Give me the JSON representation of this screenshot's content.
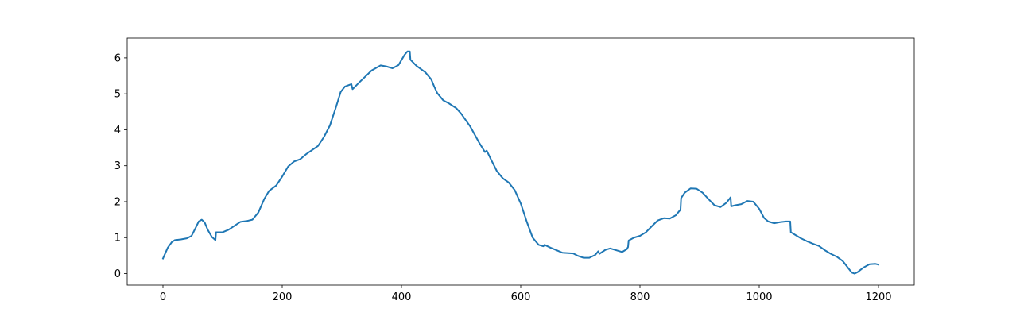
{
  "chart_data": {
    "type": "line",
    "title": "",
    "xlabel": "",
    "ylabel": "",
    "xlim": [
      -60,
      1260
    ],
    "ylim": [
      -0.32,
      6.55
    ],
    "grid": false,
    "x_ticks": [
      0,
      200,
      400,
      600,
      800,
      1000,
      1200
    ],
    "y_ticks": [
      0,
      1,
      2,
      3,
      4,
      5,
      6
    ],
    "x_tick_labels": [
      "0",
      "200",
      "400",
      "600",
      "800",
      "1000",
      "1200"
    ],
    "y_tick_labels": [
      "0",
      "1",
      "2",
      "3",
      "4",
      "5",
      "6"
    ],
    "series": [
      {
        "color": "#1f77b4",
        "points": [
          [
            0,
            0.42
          ],
          [
            8,
            0.72
          ],
          [
            15,
            0.88
          ],
          [
            20,
            0.93
          ],
          [
            30,
            0.95
          ],
          [
            40,
            0.98
          ],
          [
            48,
            1.05
          ],
          [
            55,
            1.28
          ],
          [
            60,
            1.45
          ],
          [
            65,
            1.5
          ],
          [
            70,
            1.42
          ],
          [
            75,
            1.22
          ],
          [
            82,
            1.02
          ],
          [
            88,
            0.93
          ],
          [
            89,
            1.15
          ],
          [
            100,
            1.15
          ],
          [
            110,
            1.22
          ],
          [
            120,
            1.33
          ],
          [
            130,
            1.44
          ],
          [
            140,
            1.46
          ],
          [
            150,
            1.5
          ],
          [
            160,
            1.7
          ],
          [
            170,
            2.08
          ],
          [
            178,
            2.3
          ],
          [
            190,
            2.45
          ],
          [
            200,
            2.7
          ],
          [
            210,
            2.98
          ],
          [
            220,
            3.12
          ],
          [
            230,
            3.18
          ],
          [
            240,
            3.32
          ],
          [
            260,
            3.55
          ],
          [
            270,
            3.8
          ],
          [
            280,
            4.12
          ],
          [
            290,
            4.62
          ],
          [
            298,
            5.05
          ],
          [
            305,
            5.2
          ],
          [
            316,
            5.27
          ],
          [
            318,
            5.13
          ],
          [
            330,
            5.33
          ],
          [
            350,
            5.65
          ],
          [
            365,
            5.79
          ],
          [
            375,
            5.76
          ],
          [
            385,
            5.71
          ],
          [
            395,
            5.8
          ],
          [
            405,
            6.08
          ],
          [
            410,
            6.18
          ],
          [
            414,
            6.18
          ],
          [
            415,
            5.95
          ],
          [
            425,
            5.78
          ],
          [
            440,
            5.6
          ],
          [
            450,
            5.4
          ],
          [
            455,
            5.2
          ],
          [
            460,
            5.02
          ],
          [
            470,
            4.82
          ],
          [
            480,
            4.73
          ],
          [
            492,
            4.6
          ],
          [
            500,
            4.45
          ],
          [
            515,
            4.1
          ],
          [
            530,
            3.65
          ],
          [
            540,
            3.38
          ],
          [
            543,
            3.42
          ],
          [
            550,
            3.18
          ],
          [
            560,
            2.85
          ],
          [
            570,
            2.65
          ],
          [
            580,
            2.53
          ],
          [
            590,
            2.32
          ],
          [
            600,
            1.95
          ],
          [
            610,
            1.45
          ],
          [
            620,
            1.0
          ],
          [
            630,
            0.8
          ],
          [
            638,
            0.76
          ],
          [
            640,
            0.8
          ],
          [
            650,
            0.72
          ],
          [
            660,
            0.65
          ],
          [
            670,
            0.58
          ],
          [
            680,
            0.57
          ],
          [
            688,
            0.56
          ],
          [
            695,
            0.5
          ],
          [
            705,
            0.44
          ],
          [
            715,
            0.44
          ],
          [
            725,
            0.52
          ],
          [
            730,
            0.62
          ],
          [
            732,
            0.55
          ],
          [
            742,
            0.66
          ],
          [
            750,
            0.7
          ],
          [
            760,
            0.65
          ],
          [
            770,
            0.6
          ],
          [
            778,
            0.68
          ],
          [
            780,
            0.74
          ],
          [
            781,
            0.92
          ],
          [
            790,
            1.0
          ],
          [
            800,
            1.05
          ],
          [
            810,
            1.15
          ],
          [
            820,
            1.32
          ],
          [
            830,
            1.48
          ],
          [
            840,
            1.54
          ],
          [
            850,
            1.53
          ],
          [
            860,
            1.62
          ],
          [
            868,
            1.78
          ],
          [
            869,
            2.1
          ],
          [
            875,
            2.25
          ],
          [
            885,
            2.37
          ],
          [
            895,
            2.36
          ],
          [
            905,
            2.25
          ],
          [
            915,
            2.07
          ],
          [
            925,
            1.9
          ],
          [
            935,
            1.85
          ],
          [
            945,
            1.97
          ],
          [
            952,
            2.12
          ],
          [
            953,
            1.87
          ],
          [
            960,
            1.9
          ],
          [
            970,
            1.93
          ],
          [
            980,
            2.02
          ],
          [
            990,
            2.0
          ],
          [
            1000,
            1.8
          ],
          [
            1008,
            1.55
          ],
          [
            1015,
            1.45
          ],
          [
            1025,
            1.4
          ],
          [
            1035,
            1.43
          ],
          [
            1045,
            1.45
          ],
          [
            1052,
            1.45
          ],
          [
            1053,
            1.15
          ],
          [
            1060,
            1.08
          ],
          [
            1070,
            0.98
          ],
          [
            1080,
            0.9
          ],
          [
            1090,
            0.83
          ],
          [
            1100,
            0.77
          ],
          [
            1110,
            0.65
          ],
          [
            1120,
            0.55
          ],
          [
            1130,
            0.47
          ],
          [
            1140,
            0.35
          ],
          [
            1148,
            0.18
          ],
          [
            1155,
            0.03
          ],
          [
            1160,
            0.0
          ],
          [
            1165,
            0.04
          ],
          [
            1175,
            0.17
          ],
          [
            1185,
            0.26
          ],
          [
            1195,
            0.27
          ],
          [
            1200,
            0.25
          ]
        ]
      }
    ]
  }
}
